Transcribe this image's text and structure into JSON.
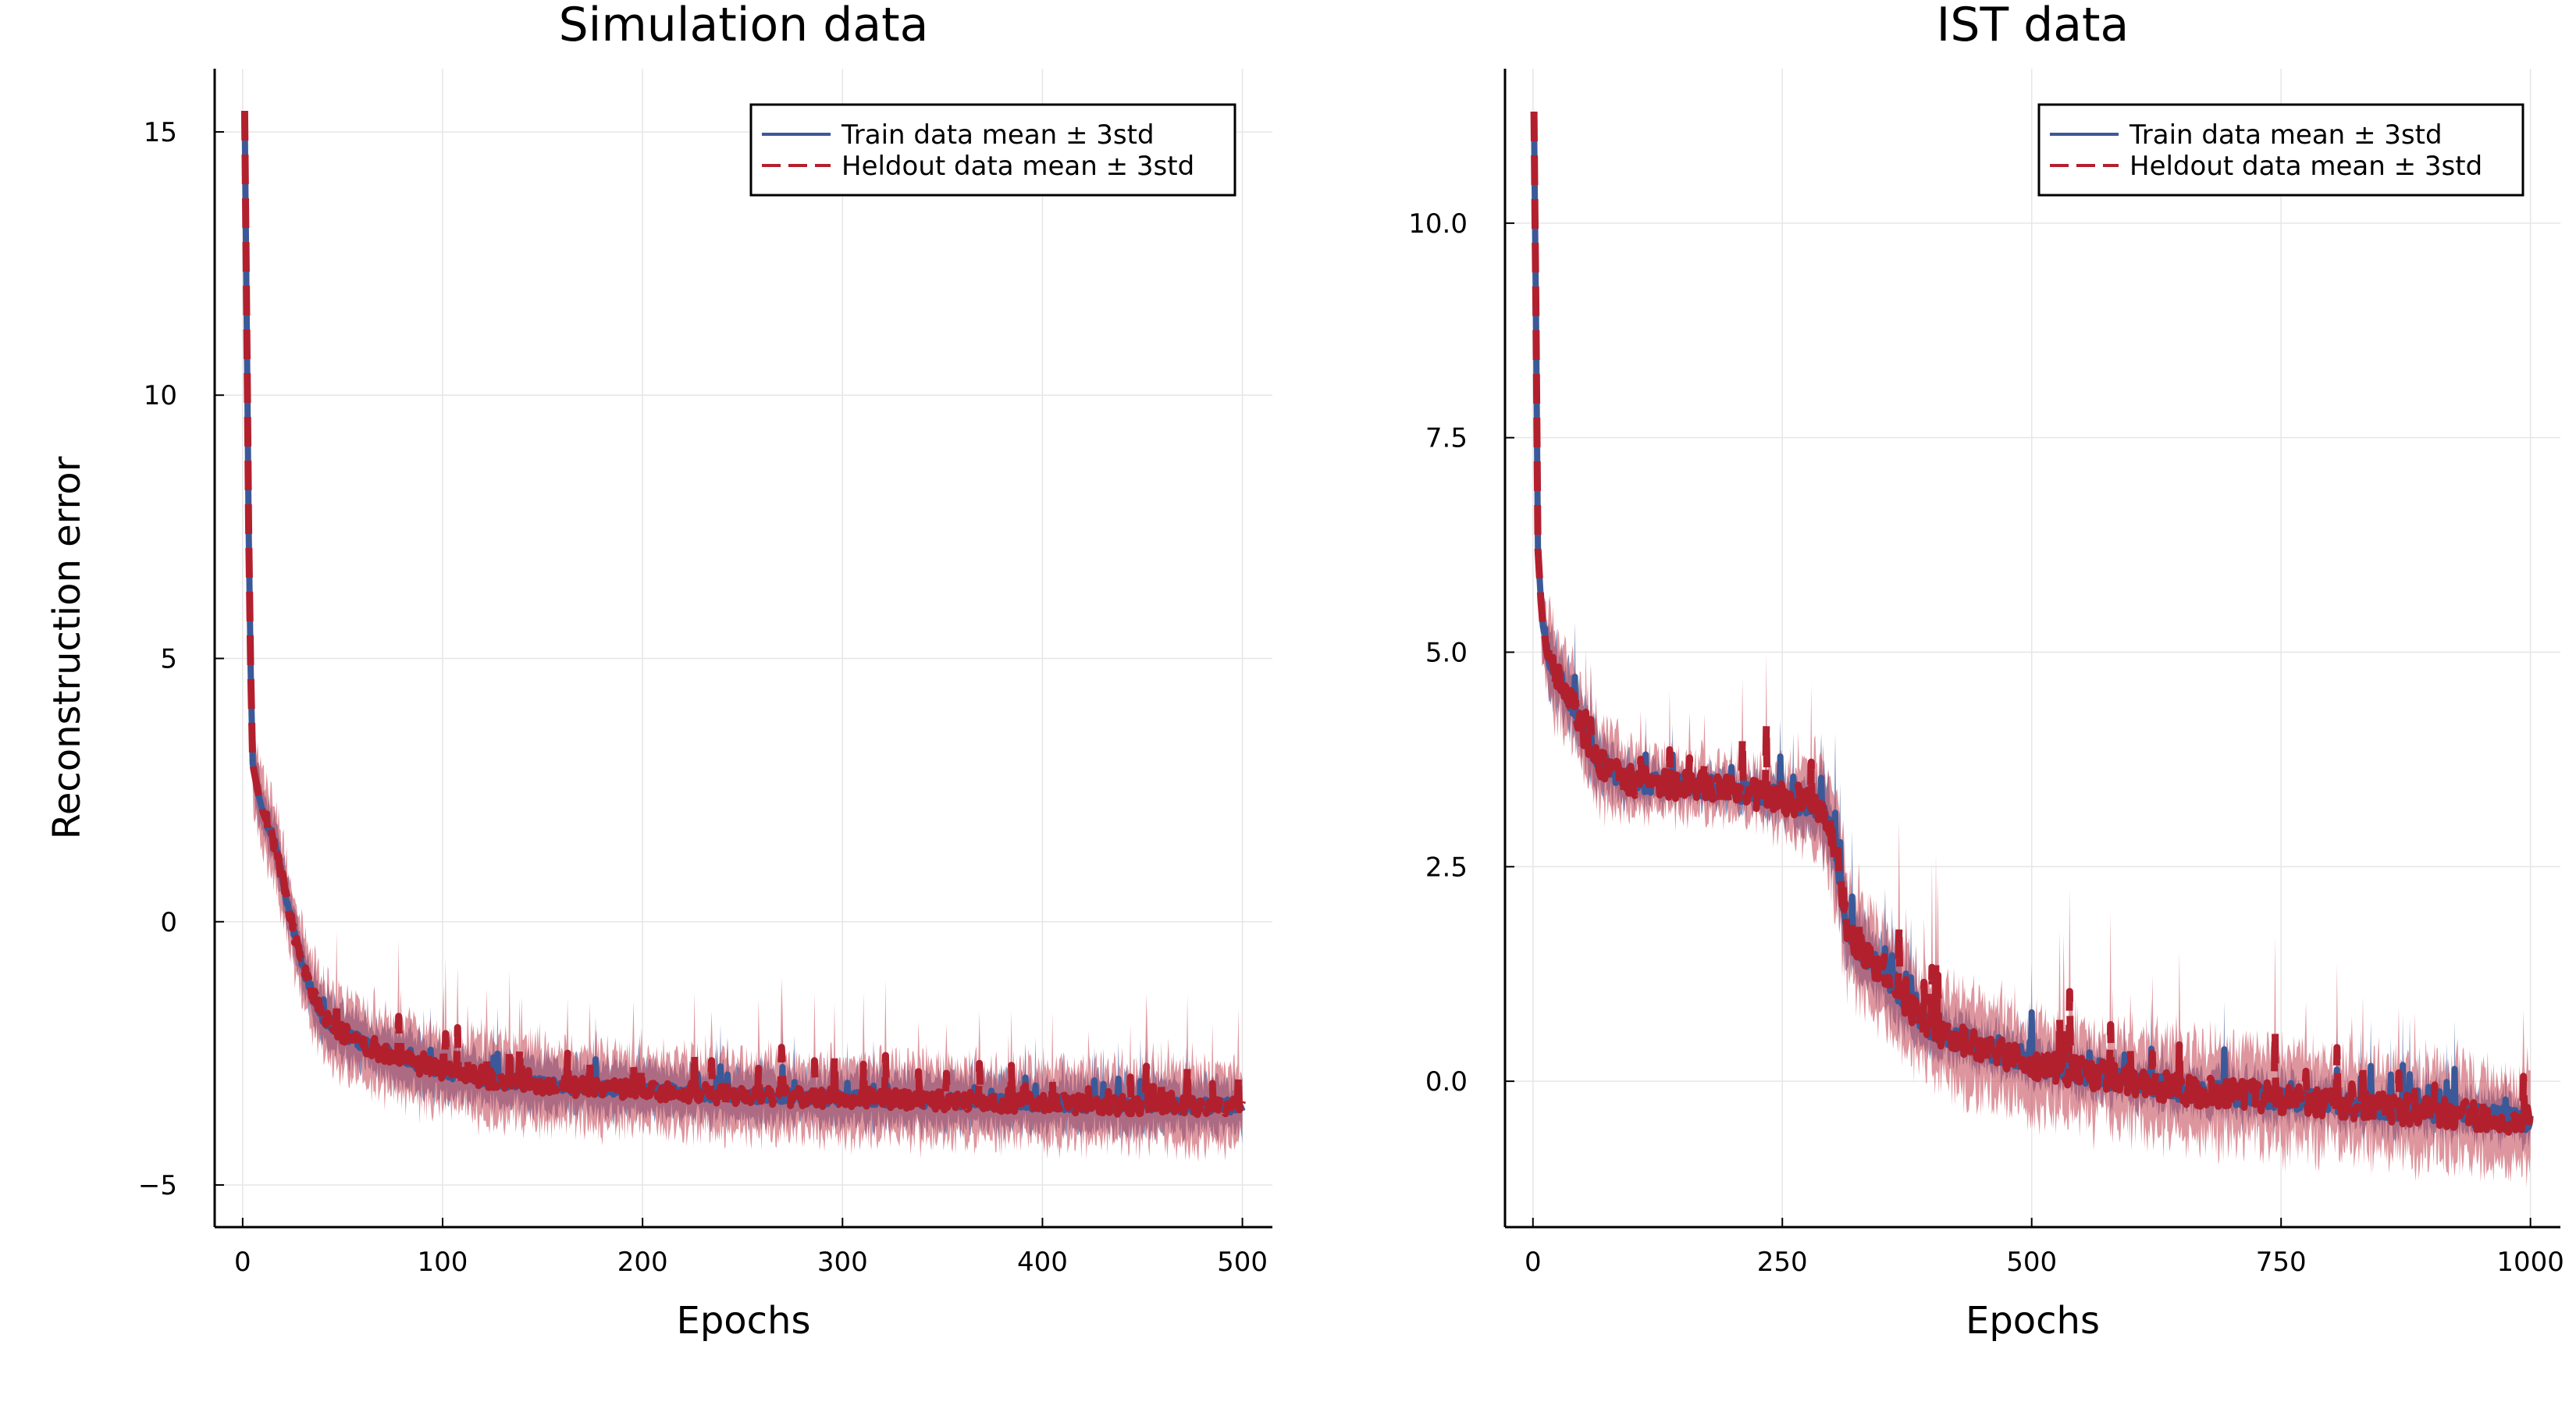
{
  "figure": {
    "ylabel": "Reconstruction error"
  },
  "chart_data": [
    {
      "type": "line",
      "title": "Simulation data",
      "xlabel": "Epochs",
      "ylabel": "Reconstruction error",
      "xlim": [
        -14,
        515
      ],
      "ylim": [
        -5.8,
        16.2
      ],
      "xticks": [
        0,
        100,
        200,
        300,
        400,
        500
      ],
      "yticks": [
        -5,
        0,
        5,
        10,
        15
      ],
      "xtick_labels": [
        "0",
        "100",
        "200",
        "300",
        "400",
        "500"
      ],
      "ytick_labels": [
        "−5",
        "0",
        "5",
        "10",
        "15"
      ],
      "grid": true,
      "legend_position": "top-right",
      "colors": {
        "train": "#3b5998",
        "heldout": "#b2202e",
        "train_band": "#5a6fa6",
        "heldout_band": "#c8505e"
      },
      "series": [
        {
          "name": "Train data mean ± 3std",
          "style": "solid",
          "x": [
            1,
            2,
            3,
            4,
            5,
            8,
            10,
            15,
            20,
            25,
            30,
            35,
            40,
            50,
            60,
            70,
            80,
            90,
            100,
            125,
            150,
            175,
            200,
            250,
            300,
            350,
            400,
            450,
            500
          ],
          "values": [
            15.4,
            11.5,
            7.5,
            4.8,
            3.0,
            2.4,
            2.1,
            1.6,
            0.8,
            -0.1,
            -0.8,
            -1.4,
            -1.8,
            -2.1,
            -2.3,
            -2.5,
            -2.6,
            -2.75,
            -2.85,
            -3.0,
            -3.1,
            -3.15,
            -3.2,
            -3.3,
            -3.35,
            -3.4,
            -3.45,
            -3.5,
            -3.5
          ],
          "std3": [
            0.1,
            0.4,
            0.4,
            0.4,
            0.4,
            0.4,
            0.4,
            0.4,
            0.4,
            0.4,
            0.4,
            0.4,
            0.4,
            0.4,
            0.4,
            0.4,
            0.4,
            0.4,
            0.4,
            0.4,
            0.4,
            0.4,
            0.4,
            0.4,
            0.4,
            0.4,
            0.4,
            0.4,
            0.4
          ]
        },
        {
          "name": "Heldout data mean ± 3std",
          "style": "dashed",
          "x": [
            1,
            2,
            3,
            4,
            5,
            8,
            10,
            15,
            20,
            25,
            30,
            35,
            40,
            50,
            60,
            70,
            80,
            90,
            100,
            125,
            150,
            175,
            200,
            250,
            300,
            350,
            400,
            450,
            500
          ],
          "values": [
            15.4,
            11.5,
            7.5,
            4.8,
            3.0,
            2.4,
            2.1,
            1.6,
            0.8,
            -0.1,
            -0.8,
            -1.4,
            -1.8,
            -2.1,
            -2.3,
            -2.5,
            -2.6,
            -2.75,
            -2.85,
            -3.0,
            -3.1,
            -3.15,
            -3.2,
            -3.3,
            -3.35,
            -3.4,
            -3.45,
            -3.5,
            -3.5
          ],
          "std3": [
            0.1,
            0.6,
            0.6,
            0.6,
            0.6,
            0.6,
            0.6,
            0.6,
            0.6,
            0.6,
            0.6,
            0.6,
            0.6,
            0.6,
            0.6,
            0.6,
            0.6,
            0.6,
            0.6,
            0.6,
            0.6,
            0.6,
            0.6,
            0.6,
            0.6,
            0.6,
            0.6,
            0.6,
            0.6
          ]
        }
      ]
    },
    {
      "type": "line",
      "title": "IST data",
      "xlabel": "Epochs",
      "ylabel": "",
      "xlim": [
        -28,
        1030
      ],
      "ylim": [
        -1.7,
        11.8
      ],
      "xticks": [
        0,
        250,
        500,
        750,
        1000
      ],
      "yticks": [
        0,
        2.5,
        5,
        7.5,
        10
      ],
      "xtick_labels": [
        "0",
        "250",
        "500",
        "750",
        "1000"
      ],
      "ytick_labels": [
        "0.0",
        "2.5",
        "5.0",
        "7.5",
        "10.0"
      ],
      "grid": true,
      "legend_position": "top-right",
      "colors": {
        "train": "#3b5998",
        "heldout": "#b2202e",
        "train_band": "#5a6fa6",
        "heldout_band": "#c8505e"
      },
      "series": [
        {
          "name": "Train data mean ± 3std",
          "style": "solid",
          "x": [
            1,
            3,
            5,
            8,
            10,
            15,
            20,
            30,
            40,
            50,
            60,
            80,
            100,
            150,
            200,
            250,
            280,
            295,
            305,
            315,
            330,
            350,
            375,
            400,
            450,
            500,
            550,
            600,
            650,
            700,
            750,
            800,
            850,
            900,
            950,
            1000
          ],
          "values": [
            11.3,
            9.0,
            6.2,
            5.6,
            5.3,
            5.0,
            4.8,
            4.6,
            4.4,
            4.1,
            3.8,
            3.6,
            3.5,
            3.45,
            3.4,
            3.3,
            3.2,
            3.1,
            2.6,
            1.8,
            1.5,
            1.3,
            0.9,
            0.6,
            0.4,
            0.2,
            0.1,
            0.0,
            -0.1,
            -0.15,
            -0.2,
            -0.25,
            -0.3,
            -0.35,
            -0.4,
            -0.45
          ],
          "std3": [
            0.1,
            0.3,
            0.3,
            0.3,
            0.3,
            0.3,
            0.3,
            0.3,
            0.3,
            0.3,
            0.3,
            0.25,
            0.2,
            0.15,
            0.15,
            0.2,
            0.3,
            0.4,
            0.4,
            0.35,
            0.3,
            0.3,
            0.3,
            0.25,
            0.2,
            0.2,
            0.2,
            0.2,
            0.2,
            0.2,
            0.2,
            0.2,
            0.2,
            0.2,
            0.2,
            0.2
          ]
        },
        {
          "name": "Heldout data mean ± 3std",
          "style": "dashed",
          "x": [
            1,
            3,
            5,
            8,
            10,
            15,
            20,
            30,
            40,
            50,
            60,
            80,
            100,
            150,
            200,
            250,
            280,
            295,
            305,
            315,
            330,
            350,
            375,
            400,
            450,
            500,
            550,
            600,
            650,
            700,
            750,
            800,
            850,
            900,
            950,
            1000
          ],
          "values": [
            11.3,
            9.0,
            6.2,
            5.6,
            5.3,
            5.0,
            4.8,
            4.6,
            4.4,
            4.1,
            3.8,
            3.6,
            3.5,
            3.45,
            3.4,
            3.3,
            3.2,
            3.1,
            2.6,
            1.8,
            1.5,
            1.3,
            0.9,
            0.6,
            0.4,
            0.2,
            0.1,
            0.0,
            -0.1,
            -0.15,
            -0.2,
            -0.25,
            -0.3,
            -0.35,
            -0.4,
            -0.45
          ],
          "std3": [
            0.1,
            0.4,
            0.4,
            0.4,
            0.4,
            0.4,
            0.4,
            0.4,
            0.4,
            0.4,
            0.4,
            0.35,
            0.3,
            0.25,
            0.25,
            0.3,
            0.45,
            0.55,
            0.55,
            0.5,
            0.45,
            0.45,
            0.45,
            0.45,
            0.45,
            0.45,
            0.45,
            0.45,
            0.45,
            0.45,
            0.45,
            0.45,
            0.45,
            0.45,
            0.45,
            0.45
          ]
        }
      ]
    }
  ]
}
